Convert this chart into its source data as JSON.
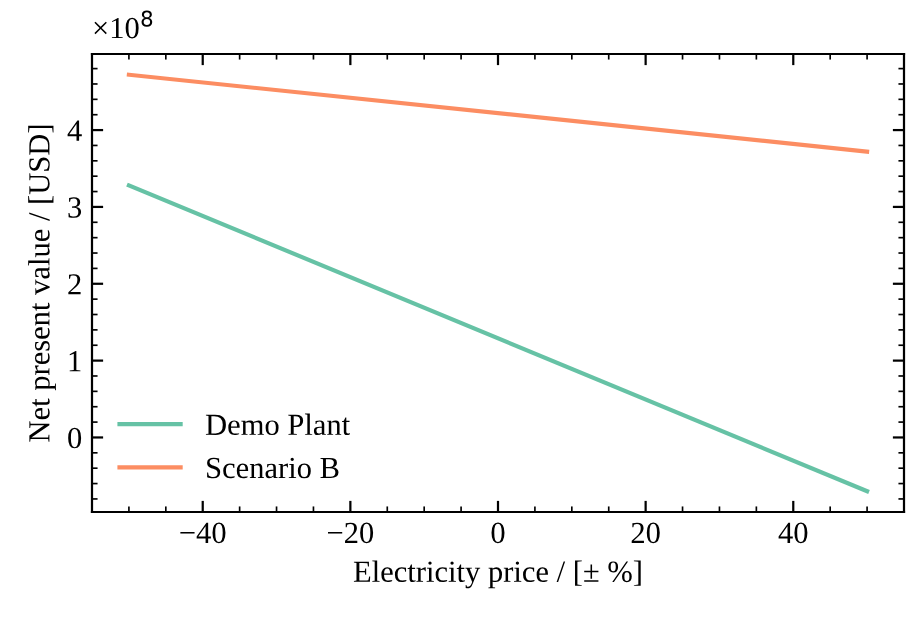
{
  "chart_data": {
    "type": "line",
    "xlabel": "Electricity price / [± %]",
    "ylabel": "Net present value / [USD]",
    "annotations": [
      "×10$^{8}$"
    ],
    "x": [
      -50,
      50
    ],
    "series": [
      {
        "name": "Demo Plant",
        "color": "#66c2a5",
        "values": [
          3.28,
          -0.7
        ]
      },
      {
        "name": "Scenario B",
        "color": "#fc8d62",
        "values": [
          4.72,
          3.72
        ]
      }
    ],
    "xlim": [
      -55,
      55
    ],
    "ylim": [
      -0.97,
      4.99
    ],
    "xticks": [
      -40,
      -20,
      0,
      20,
      40
    ],
    "yticks": [
      0,
      1,
      2,
      3,
      4
    ],
    "grid": false,
    "legend": "bottom left",
    "marker": "none",
    "line_style": "solid"
  }
}
